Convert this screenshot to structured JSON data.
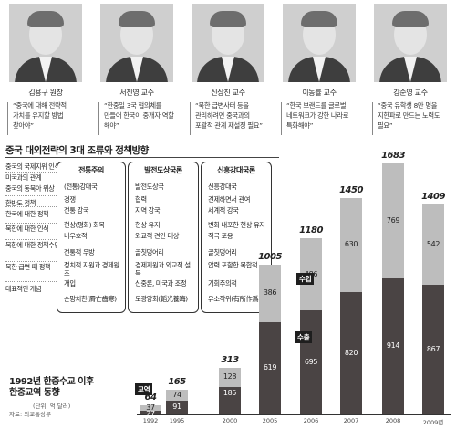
{
  "people": [
    {
      "name": "김용구 원장",
      "quote": "“중국에 대해 전략적 가치를 유지할 방법 찾아야”"
    },
    {
      "name": "서진영 교수",
      "quote": "“한중일 3국 협의체를 만들어 한국이 중개자 역할 해야”"
    },
    {
      "name": "신상진 교수",
      "quote": "“북한 급변사태 등을 관리하려면 중국과의 포괄적 관계 재설정 필요”"
    },
    {
      "name": "이동률 교수",
      "quote": "“한국 브랜드를 글로벌 네트워크가 강한 나라로 특화해야”"
    },
    {
      "name": "강준영 교수",
      "quote": "“중국 유학생 8만 명을 지한파로 만드는 노력도 필요”"
    }
  ],
  "strategy": {
    "title": "중국 대외전략의 3대 조류와 정책방향",
    "rows": [
      {
        "label": "중국의 국제지위 인식"
      },
      {
        "label": "미국과의 관계"
      },
      {
        "label": "중국의 동북아 위상"
      },
      {
        "label": "한반도 정책"
      },
      {
        "label": "한국에 대한 정책"
      },
      {
        "label": "북한에 대한 인식"
      },
      {
        "label": "북한에 대한 정책수단"
      },
      {
        "label": "북한 급변 때 정책"
      },
      {
        "label": "대표적인 개념"
      }
    ],
    "columns": [
      {
        "header": "전통주의",
        "cells": [
          "(전통)강대국",
          "경쟁",
          "전통 강국",
          "현상(평화) 회복",
          "비우호적",
          "전통적 우방",
          "정치적 지원과 경제원조",
          "개입",
          "순망치한(脣亡齒寒)"
        ]
      },
      {
        "header": "발전도상국론",
        "cells": [
          "발전도상국",
          "협력",
          "지역 강국",
          "현상 유지",
          "외교적 견인 대상",
          "골칫덩어리",
          "경제지원과 외교적 설득",
          "신중론, 미국과 조정",
          "도광양회(韜光養晦)"
        ]
      },
      {
        "header": "신흥강대국론",
        "cells": [
          "신흥강대국",
          "견제하면서 관여",
          "세계적 강국",
          "변화 내포한 현상 유지",
          "적극 포용",
          "골칫덩어리",
          "압력 포함한 복합적",
          "기회주의적",
          "유소작위(有所作爲)"
        ]
      }
    ]
  },
  "trade": {
    "title_line1": "1992년 한중수교 이후",
    "title_line2": "한중교역 동향",
    "unit": "(단위: 억 달러)",
    "source": "자료: 외교통상부",
    "legend_total": "교역",
    "legend_export": "수출",
    "legend_import": "수입",
    "colors": {
      "export": "#4a4444",
      "import": "#bdbdbd"
    }
  },
  "chart_data": {
    "type": "bar",
    "title": "1992년 한중수교 이후 한중교역 동향",
    "ylabel": "(단위: 억 달러)",
    "categories": [
      "1992",
      "1995",
      "2000",
      "2005",
      "2006",
      "2007",
      "2008",
      "2009년"
    ],
    "totals": [
      "64",
      "165",
      "313",
      "1005",
      "1180",
      "1450",
      "1683",
      "1409"
    ],
    "series": [
      {
        "name": "수출",
        "values": [
          27,
          91,
          185,
          619,
          695,
          820,
          914,
          867
        ]
      },
      {
        "name": "수입",
        "values": [
          37,
          74,
          128,
          386,
          486,
          630,
          769,
          542
        ]
      }
    ]
  }
}
